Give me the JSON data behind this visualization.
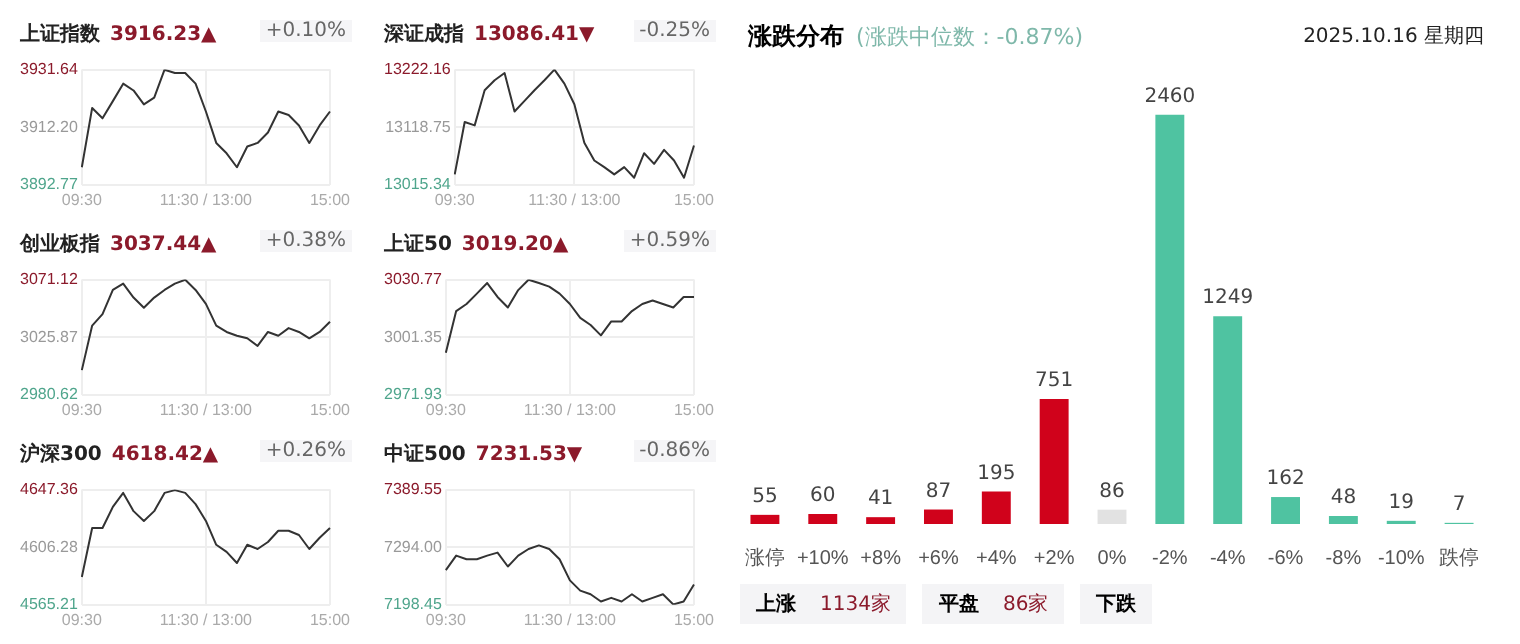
{
  "chart_data": [
    {
      "type": "line",
      "title": "上证指数",
      "subtitle": "3916.23▲",
      "annotations": [
        "+0.10%"
      ],
      "categories": [
        "09:30",
        null,
        null,
        null,
        null,
        null,
        null,
        null,
        null,
        null,
        null,
        null,
        "11:30 / 13:00",
        null,
        null,
        null,
        null,
        null,
        null,
        null,
        null,
        null,
        null,
        null,
        "15:00"
      ],
      "values": [
        3898.7,
        3918.7,
        3915.2,
        3921.0,
        3926.9,
        3924.6,
        3919.9,
        3922.2,
        3931.6,
        3930.5,
        3930.5,
        3926.9,
        3917.5,
        3906.9,
        3903.4,
        3898.7,
        3905.7,
        3906.9,
        3910.4,
        3917.5,
        3916.3,
        3912.8,
        3906.9,
        3912.8,
        3917.5
      ],
      "color": "#333333",
      "ylim": [
        3892.77,
        3931.64
      ],
      "yticks": [
        3892.77,
        {
          "value": 3912.205,
          "label": "3912.20"
        },
        3931.64
      ],
      "grid": true,
      "marker": "none"
    },
    {
      "type": "line",
      "title": "深证成指",
      "subtitle": "13086.41▼",
      "annotations": [
        "-0.25%"
      ],
      "categories": [
        "09:30",
        null,
        null,
        null,
        null,
        null,
        null,
        null,
        null,
        null,
        null,
        null,
        "11:30 / 13:00",
        null,
        null,
        null,
        null,
        null,
        null,
        null,
        null,
        null,
        null,
        null,
        "15:00"
      ],
      "values": [
        13034,
        13128,
        13122,
        13185,
        13203,
        13216,
        13147,
        13166,
        13185,
        13203,
        13222,
        13197,
        13160,
        13091,
        13059,
        13047,
        13034,
        13047,
        13028,
        13072,
        13053,
        13078,
        13059,
        13028,
        13086
      ],
      "color": "#333333",
      "ylim": [
        13015.34,
        13222.16
      ],
      "yticks": [
        13015.34,
        13118.75,
        13222.16
      ],
      "grid": true,
      "marker": "none"
    },
    {
      "type": "line",
      "title": "创业板指",
      "subtitle": "3037.44▲",
      "annotations": [
        "+0.38%"
      ],
      "categories": [
        "09:30",
        null,
        null,
        null,
        null,
        null,
        null,
        null,
        null,
        null,
        null,
        null,
        "11:30 / 13:00",
        null,
        null,
        null,
        null,
        null,
        null,
        null,
        null,
        null,
        null,
        null,
        "15:00"
      ],
      "values": [
        3000,
        3035,
        3044,
        3063,
        3068,
        3057,
        3049,
        3057,
        3063,
        3068,
        3071,
        3063,
        3052,
        3035,
        3030,
        3027,
        3025,
        3019,
        3030,
        3027,
        3033,
        3030,
        3025,
        3030,
        3038
      ],
      "color": "#333333",
      "ylim": [
        2980.62,
        3071.12
      ],
      "yticks": [
        2980.62,
        3025.87,
        3071.12
      ],
      "grid": true,
      "marker": "none"
    },
    {
      "type": "line",
      "title": "上证50",
      "subtitle": "3019.20▲",
      "annotations": [
        "+0.59%"
      ],
      "categories": [
        "09:30",
        null,
        null,
        null,
        null,
        null,
        null,
        null,
        null,
        null,
        null,
        null,
        "11:30 / 13:00",
        null,
        null,
        null,
        null,
        null,
        null,
        null,
        null,
        null,
        null,
        null,
        "15:00"
      ],
      "values": [
        2993.4,
        3014.7,
        3018.3,
        3023.6,
        3029.0,
        3021.9,
        3016.5,
        3025.4,
        3030.7,
        3029.0,
        3027.2,
        3023.6,
        3018.3,
        3011.2,
        3007.6,
        3002.3,
        3009.4,
        3009.4,
        3014.7,
        3018.3,
        3020.1,
        3018.3,
        3016.5,
        3021.9,
        3021.9
      ],
      "color": "#333333",
      "ylim": [
        2971.93,
        3030.77
      ],
      "yticks": [
        2971.93,
        3001.35,
        3030.77
      ],
      "grid": true,
      "marker": "none"
    },
    {
      "type": "line",
      "title": "沪深300",
      "subtitle": "4618.42▲",
      "annotations": [
        "+0.26%"
      ],
      "categories": [
        "09:30",
        null,
        null,
        null,
        null,
        null,
        null,
        null,
        null,
        null,
        null,
        null,
        "11:30 / 13:00",
        null,
        null,
        null,
        null,
        null,
        null,
        null,
        null,
        null,
        null,
        null,
        "15:00"
      ],
      "values": [
        4585,
        4620,
        4620,
        4635,
        4645,
        4632,
        4625,
        4632,
        4645,
        4647,
        4645,
        4637,
        4625,
        4608,
        4603,
        4595,
        4608,
        4605,
        4610,
        4618,
        4618,
        4615,
        4605,
        4613,
        4620
      ],
      "color": "#333333",
      "ylim": [
        4565.21,
        4647.36
      ],
      "yticks": [
        4565.21,
        {
          "value": 4606.285,
          "label": "4606.28"
        },
        4647.36
      ],
      "grid": true,
      "marker": "none"
    },
    {
      "type": "line",
      "title": "中证500",
      "subtitle": "7231.53▼",
      "annotations": [
        "-0.86%"
      ],
      "categories": [
        "09:30",
        null,
        null,
        null,
        null,
        null,
        null,
        null,
        null,
        null,
        null,
        null,
        "11:30 / 13:00",
        null,
        null,
        null,
        null,
        null,
        null,
        null,
        null,
        null,
        null,
        null,
        "15:00"
      ],
      "values": [
        7256,
        7280,
        7274,
        7274,
        7280,
        7285,
        7262,
        7280,
        7291,
        7297,
        7291,
        7274,
        7239,
        7222,
        7216,
        7204,
        7210,
        7204,
        7216,
        7204,
        7210,
        7216,
        7199,
        7204,
        7232
      ],
      "color": "#333333",
      "ylim": [
        7198.45,
        7389.55
      ],
      "yticks": [
        7198.45,
        {
          "value": 7294,
          "label": "7294.00"
        },
        7389.55
      ],
      "grid": true,
      "marker": "none"
    },
    {
      "type": "bar",
      "title": "涨跌分布",
      "subtitle": "(涨跌中位数：-0.87%)",
      "annotations": [
        "2025.10.16 星期四",
        "上涨",
        "1134家",
        "平盘",
        "86家",
        "下跌"
      ],
      "categories": [
        "涨停",
        "+10%",
        "+8%",
        "+6%",
        "+4%",
        "+2%",
        "0%",
        "-2%",
        "-4%",
        "-6%",
        "-8%",
        "-10%",
        "跌停"
      ],
      "values": [
        55,
        60,
        41,
        87,
        195,
        751,
        86,
        2460,
        1249,
        162,
        48,
        19,
        7
      ],
      "colors": [
        "#d0021b",
        "#d0021b",
        "#d0021b",
        "#d0021b",
        "#d0021b",
        "#d0021b",
        "#e2e2e2",
        "#4fc3a1",
        "#4fc3a1",
        "#4fc3a1",
        "#4fc3a1",
        "#4fc3a1",
        "#4fc3a1"
      ],
      "data_labels": true,
      "tick_labels": "x"
    }
  ]
}
